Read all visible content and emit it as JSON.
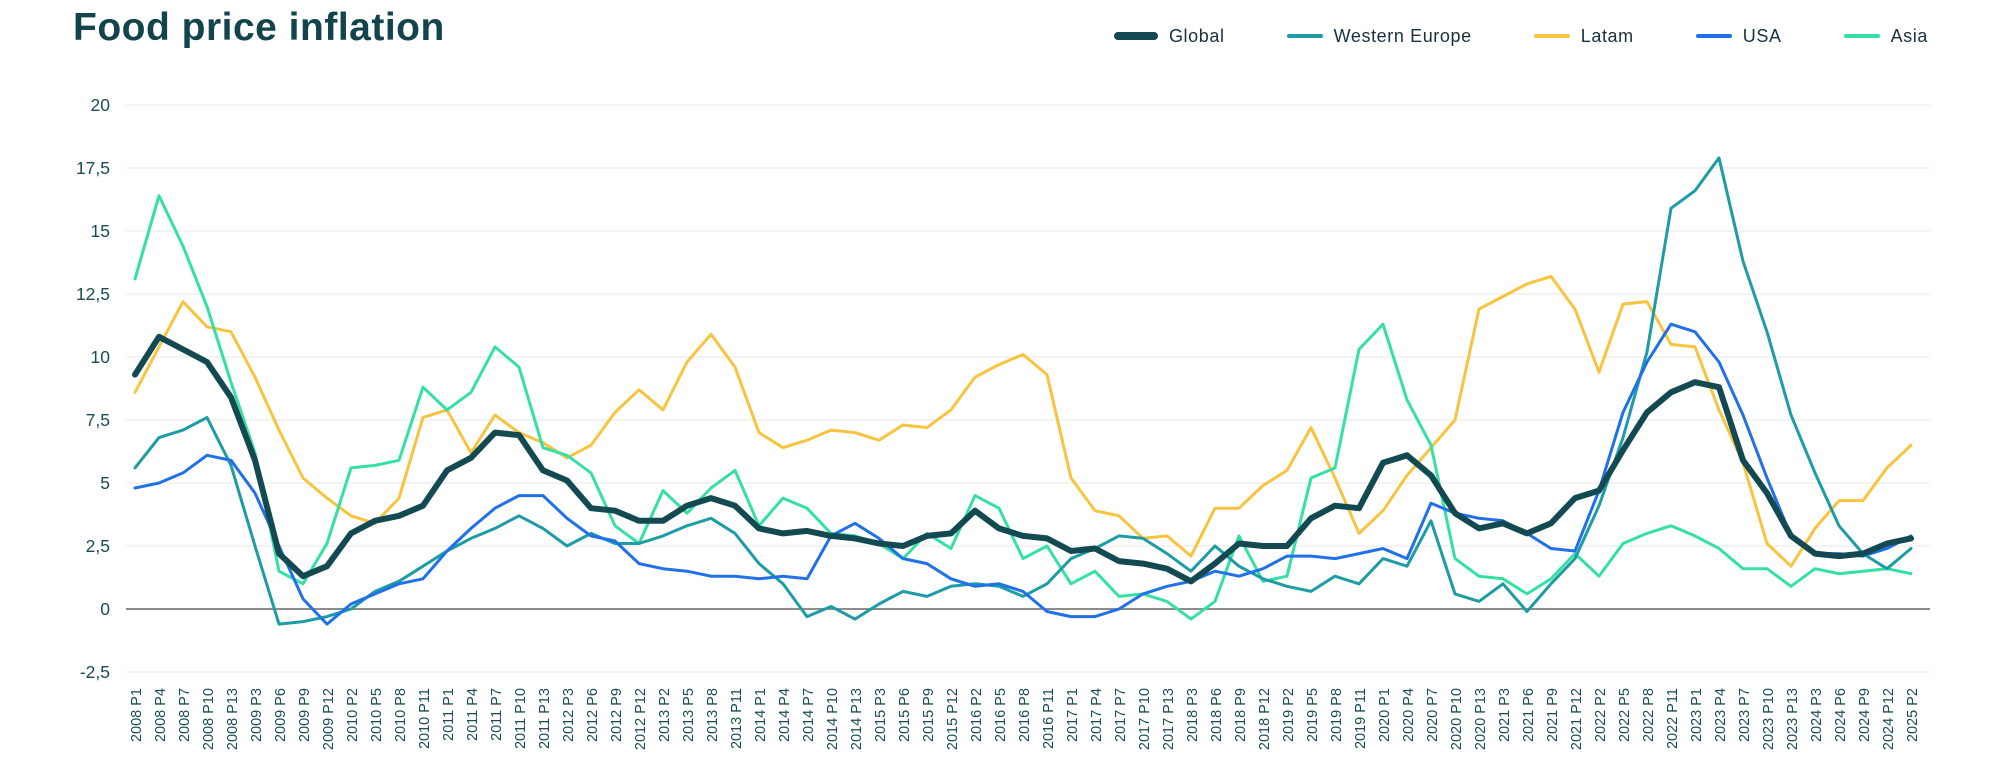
{
  "title": "Food price inflation",
  "colors": {
    "title_text": "#11444b",
    "axis_text": "#174c55",
    "legend_text": "#16323e",
    "grid": "#ececec",
    "zero_line": "#8c8c8c",
    "background": "#ffffff"
  },
  "legend": [
    {
      "id": "global",
      "label": "Global",
      "color": "#134a51",
      "thick": true
    },
    {
      "id": "western-europe",
      "label": "Western Europe",
      "color": "#1d9ca6",
      "thick": false
    },
    {
      "id": "latam",
      "label": "Latam",
      "color": "#f8c43f",
      "thick": false
    },
    {
      "id": "usa",
      "label": "USA",
      "color": "#2070e8",
      "thick": false
    },
    {
      "id": "asia",
      "label": "Asia",
      "color": "#35e0a4",
      "thick": false
    }
  ],
  "chart_data": {
    "type": "line",
    "title": "Food price inflation",
    "xlabel": "",
    "ylabel": "",
    "ylim": [
      -2.5,
      20
    ],
    "grid": true,
    "legend_position": "top-right",
    "y_ticks": [
      {
        "v": 20,
        "label": "20"
      },
      {
        "v": 17.5,
        "label": "17,5"
      },
      {
        "v": 15,
        "label": "15"
      },
      {
        "v": 12.5,
        "label": "12,5"
      },
      {
        "v": 10,
        "label": "10"
      },
      {
        "v": 7.5,
        "label": "7,5"
      },
      {
        "v": 5,
        "label": "5"
      },
      {
        "v": 2.5,
        "label": "2,5"
      },
      {
        "v": 0,
        "label": "0"
      },
      {
        "v": -2.5,
        "label": "-2,5"
      }
    ],
    "x_tick_labels": [
      "2008 P1",
      "2008 P4",
      "2008 P7",
      "2008 P10",
      "2008 P13",
      "2009 P3",
      "2009 P6",
      "2009 P9",
      "2009 P12",
      "2010 P2",
      "2010 P5",
      "2010 P8",
      "2010 P11",
      "2011 P1",
      "2011 P4",
      "2011 P7",
      "2011 P10",
      "2011 P13",
      "2012 P3",
      "2012 P6",
      "2012 P9",
      "2012 P12",
      "2013 P2",
      "2013 P5",
      "2013 P8",
      "2013 P11",
      "2014 P1",
      "2014 P4",
      "2014 P7",
      "2014 P10",
      "2014 P13",
      "2015 P3",
      "2015 P6",
      "2015 P9",
      "2015 P12",
      "2016 P2",
      "2016 P5",
      "2016 P8",
      "2016 P11",
      "2017 P1",
      "2017 P4",
      "2017 P7",
      "2017 P10",
      "2017 P13",
      "2018 P3",
      "2018 P6",
      "2018 P9",
      "2018 P12",
      "2019 P2",
      "2019 P5",
      "2019 P8",
      "2019 P11",
      "2020 P1",
      "2020 P4",
      "2020 P7",
      "2020 P10",
      "2020 P13",
      "2021 P3",
      "2021 P6",
      "2021 P9",
      "2021 P12",
      "2022 P2",
      "2022 P5",
      "2022 P8",
      "2022 P11",
      "2023 P1",
      "2023 P4",
      "2023 P7",
      "2023 P10",
      "2023 P13",
      "2024 P3",
      "2024 P6",
      "2024 P9",
      "2024 P12",
      "2025 P2"
    ],
    "series": [
      {
        "name": "Latam",
        "color": "#f8c43f",
        "width": 3,
        "values": [
          8.6,
          10.4,
          12.2,
          11.2,
          11.0,
          9.2,
          7.1,
          5.2,
          4.4,
          3.7,
          3.4,
          4.4,
          7.6,
          7.9,
          6.2,
          7.7,
          7.0,
          6.6,
          6.0,
          6.5,
          7.8,
          8.7,
          7.9,
          9.8,
          10.9,
          9.6,
          7.0,
          6.4,
          6.7,
          7.1,
          7.0,
          6.7,
          7.3,
          7.2,
          7.9,
          9.2,
          9.7,
          10.1,
          9.3,
          5.2,
          3.9,
          3.7,
          2.8,
          2.9,
          2.1,
          4.0,
          4.0,
          4.9,
          5.5,
          7.2,
          5.2,
          3.0,
          3.9,
          5.3,
          6.4,
          7.5,
          11.9,
          12.4,
          12.9,
          13.2,
          11.9,
          9.4,
          12.1,
          12.2,
          10.5,
          10.4,
          7.9,
          5.8,
          2.6,
          1.7,
          3.2,
          4.3,
          4.3,
          5.6,
          6.5
        ]
      },
      {
        "name": "Asia",
        "color": "#35e0a4",
        "width": 3,
        "values": [
          13.1,
          16.4,
          14.4,
          12.0,
          9.0,
          6.2,
          1.5,
          1.0,
          2.6,
          5.6,
          5.7,
          5.9,
          8.8,
          7.9,
          8.6,
          10.4,
          9.6,
          6.4,
          6.1,
          5.4,
          3.3,
          2.6,
          4.7,
          3.8,
          4.8,
          5.5,
          3.3,
          4.4,
          4.0,
          3.0,
          2.9,
          2.6,
          2.0,
          3.0,
          2.4,
          4.5,
          4.0,
          2.0,
          2.5,
          1.0,
          1.5,
          0.5,
          0.6,
          0.3,
          -0.4,
          0.3,
          2.9,
          1.1,
          1.3,
          5.2,
          5.6,
          10.3,
          11.3,
          8.3,
          6.5,
          2.0,
          1.3,
          1.2,
          0.6,
          1.2,
          2.2,
          1.3,
          2.6,
          3.0,
          3.3,
          2.9,
          2.4,
          1.6,
          1.6,
          0.9,
          1.6,
          1.4,
          1.5,
          1.6,
          1.4
        ]
      },
      {
        "name": "Western Europe",
        "color": "#1d9ca6",
        "width": 3,
        "values": [
          5.6,
          6.8,
          7.1,
          7.6,
          5.7,
          2.5,
          -0.6,
          -0.5,
          -0.3,
          0.0,
          0.7,
          1.1,
          1.7,
          2.3,
          2.8,
          3.2,
          3.7,
          3.2,
          2.5,
          3.0,
          2.6,
          2.6,
          2.9,
          3.3,
          3.6,
          3.0,
          1.8,
          1.0,
          -0.3,
          0.1,
          -0.4,
          0.2,
          0.7,
          0.5,
          0.9,
          1.0,
          0.9,
          0.5,
          1.0,
          2.0,
          2.4,
          2.9,
          2.8,
          2.2,
          1.5,
          2.5,
          1.7,
          1.2,
          0.9,
          0.7,
          1.3,
          1.0,
          2.0,
          1.7,
          3.5,
          0.6,
          0.3,
          1.0,
          -0.1,
          1.0,
          2.0,
          4.1,
          6.8,
          10.2,
          15.9,
          16.6,
          17.9,
          13.8,
          11.0,
          7.7,
          5.4,
          3.3,
          2.2,
          1.6,
          2.4
        ]
      },
      {
        "name": "USA",
        "color": "#2070e8",
        "width": 3,
        "values": [
          4.8,
          5.0,
          5.4,
          6.1,
          5.9,
          4.6,
          2.5,
          0.4,
          -0.6,
          0.2,
          0.6,
          1.0,
          1.2,
          2.3,
          3.2,
          4.0,
          4.5,
          4.5,
          3.6,
          2.9,
          2.7,
          1.8,
          1.6,
          1.5,
          1.3,
          1.3,
          1.2,
          1.3,
          1.2,
          2.9,
          3.4,
          2.8,
          2.0,
          1.8,
          1.2,
          0.9,
          1.0,
          0.7,
          -0.1,
          -0.3,
          -0.3,
          0.0,
          0.6,
          0.9,
          1.1,
          1.5,
          1.3,
          1.6,
          2.1,
          2.1,
          2.0,
          2.2,
          2.4,
          2.0,
          4.2,
          3.8,
          3.6,
          3.5,
          3.0,
          2.4,
          2.3,
          4.7,
          7.8,
          9.8,
          11.3,
          11.0,
          9.8,
          7.7,
          5.2,
          2.9,
          2.2,
          2.2,
          2.1,
          2.4,
          2.9
        ]
      },
      {
        "name": "Global",
        "color": "#134a51",
        "width": 6,
        "values": [
          9.3,
          10.8,
          10.3,
          9.8,
          8.4,
          5.9,
          2.2,
          1.3,
          1.7,
          3.0,
          3.5,
          3.7,
          4.1,
          5.5,
          6.0,
          7.0,
          6.9,
          5.5,
          5.1,
          4.0,
          3.9,
          3.5,
          3.5,
          4.1,
          4.4,
          4.1,
          3.2,
          3.0,
          3.1,
          2.9,
          2.8,
          2.6,
          2.5,
          2.9,
          3.0,
          3.9,
          3.2,
          2.9,
          2.8,
          2.3,
          2.4,
          1.9,
          1.8,
          1.6,
          1.1,
          1.8,
          2.6,
          2.5,
          2.5,
          3.6,
          4.1,
          4.0,
          5.8,
          6.1,
          5.3,
          3.8,
          3.2,
          3.4,
          3.0,
          3.4,
          4.4,
          4.7,
          6.3,
          7.8,
          8.6,
          9.0,
          8.8,
          5.9,
          4.6,
          2.9,
          2.2,
          2.1,
          2.2,
          2.6,
          2.8
        ]
      }
    ]
  }
}
